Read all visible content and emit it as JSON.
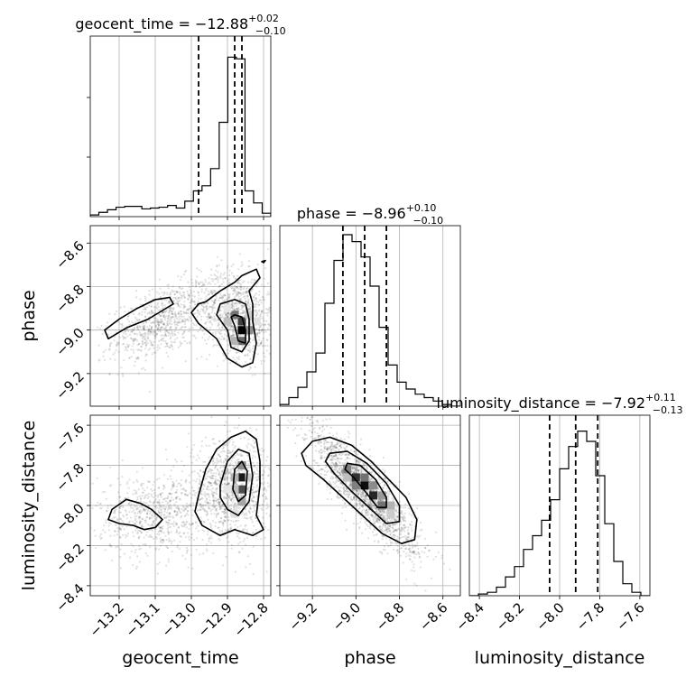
{
  "chart_data": {
    "type": "corner",
    "parameters": [
      "geocent_time",
      "phase",
      "luminosity_distance"
    ],
    "titles": [
      {
        "param": "geocent_time",
        "lhs": "geocent_time = ",
        "median": "−12.88",
        "plus": "+0.02",
        "minus": "−0.10"
      },
      {
        "param": "phase",
        "lhs": "phase = ",
        "median": "−8.96",
        "plus": "+0.10",
        "minus": "−0.10"
      },
      {
        "param": "luminosity_distance",
        "lhs": "luminosity_distance = ",
        "median": "−7.92",
        "plus": "+0.11",
        "minus": "−0.13"
      }
    ],
    "ranges": {
      "geocent_time": [
        -13.28,
        -12.78
      ],
      "phase": [
        -9.35,
        -8.52
      ],
      "luminosity_distance": [
        -8.45,
        -7.55
      ]
    },
    "ticks": {
      "geocent_time": [
        -13.2,
        -13.1,
        -13.0,
        -12.9,
        -12.8
      ],
      "phase": [
        -9.2,
        -9.0,
        -8.8,
        -8.6
      ],
      "luminosity_distance": [
        -8.4,
        -8.2,
        -8.0,
        -7.8,
        -7.6
      ]
    },
    "tick_labels": {
      "geocent_time": [
        "−13.2",
        "−13.1",
        "−13.0",
        "−12.9",
        "−12.8"
      ],
      "phase": [
        "−9.2",
        "−9.0",
        "−8.8",
        "−8.6"
      ],
      "luminosity_distance": [
        "−8.4",
        "−8.2",
        "−8.0",
        "−7.8",
        "−7.6"
      ]
    },
    "quantiles": {
      "geocent_time": [
        -12.98,
        -12.88,
        -12.86
      ],
      "phase": [
        -9.06,
        -8.96,
        -8.86
      ],
      "luminosity_distance": [
        -8.05,
        -7.92,
        -7.81
      ]
    },
    "histograms": {
      "geocent_time": [
        0.01,
        0.025,
        0.04,
        0.055,
        0.06,
        0.06,
        0.045,
        0.05,
        0.055,
        0.065,
        0.05,
        0.09,
        0.15,
        0.18,
        0.28,
        0.55,
        0.93,
        0.92,
        0.15,
        0.08,
        0.02
      ],
      "phase": [
        0.01,
        0.05,
        0.11,
        0.2,
        0.31,
        0.6,
        0.85,
        1.0,
        0.96,
        0.87,
        0.7,
        0.46,
        0.24,
        0.14,
        0.1,
        0.07,
        0.05,
        0.03,
        0.01,
        0.0
      ],
      "luminosity_distance": [
        0.0,
        0.01,
        0.02,
        0.05,
        0.11,
        0.17,
        0.27,
        0.35,
        0.44,
        0.56,
        0.74,
        0.87,
        0.96,
        0.9,
        0.7,
        0.42,
        0.2,
        0.07,
        0.02,
        0.0
      ]
    },
    "pair_clouds": [
      {
        "x": "geocent_time",
        "y": "phase",
        "components": [
          {
            "cx": -13.08,
            "cy": -8.96,
            "sx": 0.07,
            "sy": 0.09,
            "rho": 0.5,
            "weight": 0.45
          },
          {
            "cx": -12.87,
            "cy": -8.93,
            "sx": 0.05,
            "sy": 0.1,
            "rho": -0.2,
            "weight": 0.55
          }
        ]
      },
      {
        "x": "geocent_time",
        "y": "luminosity_distance",
        "components": [
          {
            "cx": -13.1,
            "cy": -8.05,
            "sx": 0.08,
            "sy": 0.1,
            "rho": 0.0,
            "weight": 0.4
          },
          {
            "cx": -12.89,
            "cy": -7.92,
            "sx": 0.06,
            "sy": 0.12,
            "rho": 0.0,
            "weight": 0.6
          }
        ]
      },
      {
        "x": "phase",
        "y": "luminosity_distance",
        "components": [
          {
            "cx": -8.96,
            "cy": -7.93,
            "sx": 0.12,
            "sy": 0.15,
            "rho": -0.85,
            "weight": 1.0
          }
        ]
      }
    ],
    "density_cells": [
      {
        "x": "geocent_time",
        "y": "phase",
        "cells": [
          [
            -12.86,
            -9.0,
            1.0
          ],
          [
            -12.86,
            -8.96,
            0.75
          ],
          [
            -12.88,
            -8.93,
            0.55
          ],
          [
            -12.86,
            -9.05,
            0.6
          ],
          [
            -12.84,
            -9.0,
            0.45
          ],
          [
            -12.9,
            -8.96,
            0.25
          ],
          [
            -12.88,
            -9.05,
            0.3
          ],
          [
            -12.84,
            -8.93,
            0.2
          ],
          [
            -12.9,
            -8.9,
            0.1
          ],
          [
            -12.82,
            -8.96,
            0.12
          ]
        ]
      },
      {
        "x": "geocent_time",
        "y": "luminosity_distance",
        "cells": [
          [
            -12.86,
            -7.86,
            0.9
          ],
          [
            -12.86,
            -7.92,
            0.7
          ],
          [
            -12.86,
            -7.8,
            0.45
          ],
          [
            -12.86,
            -7.98,
            0.35
          ],
          [
            -12.88,
            -7.86,
            0.3
          ],
          [
            -12.88,
            -7.92,
            0.25
          ],
          [
            -12.84,
            -7.86,
            0.2
          ],
          [
            -12.88,
            -8.04,
            0.12
          ],
          [
            -12.9,
            -7.92,
            0.1
          ]
        ]
      },
      {
        "x": "phase",
        "y": "luminosity_distance",
        "cells": [
          [
            -9.0,
            -7.86,
            0.8
          ],
          [
            -8.96,
            -7.9,
            0.95
          ],
          [
            -8.92,
            -7.95,
            0.85
          ],
          [
            -8.88,
            -8.0,
            0.55
          ],
          [
            -9.04,
            -7.82,
            0.5
          ],
          [
            -8.96,
            -7.86,
            0.55
          ],
          [
            -9.0,
            -7.9,
            0.5
          ],
          [
            -8.92,
            -7.9,
            0.45
          ],
          [
            -8.88,
            -7.95,
            0.4
          ],
          [
            -8.84,
            -8.0,
            0.3
          ],
          [
            -9.04,
            -7.86,
            0.25
          ],
          [
            -8.84,
            -8.04,
            0.2
          ]
        ]
      }
    ],
    "contours": [
      {
        "x": "geocent_time",
        "y": "phase",
        "paths": [
          [
            [
              -13.22,
              -9.03
            ],
            [
              -13.18,
              -8.99
            ],
            [
              -13.12,
              -8.95
            ],
            [
              -13.08,
              -8.91
            ],
            [
              -13.05,
              -8.88
            ],
            [
              -13.06,
              -8.85
            ],
            [
              -13.1,
              -8.86
            ],
            [
              -13.15,
              -8.9
            ],
            [
              -13.2,
              -8.95
            ],
            [
              -13.24,
              -9.0
            ],
            [
              -13.23,
              -9.04
            ],
            [
              -13.22,
              -9.03
            ]
          ],
          [
            [
              -12.96,
              -8.87
            ],
            [
              -12.92,
              -8.82
            ],
            [
              -12.88,
              -8.78
            ],
            [
              -12.86,
              -8.75
            ],
            [
              -12.82,
              -8.72
            ],
            [
              -12.81,
              -8.76
            ],
            [
              -12.84,
              -8.82
            ],
            [
              -12.83,
              -8.88
            ],
            [
              -12.83,
              -8.96
            ],
            [
              -12.82,
              -9.06
            ],
            [
              -12.83,
              -9.15
            ],
            [
              -12.86,
              -9.17
            ],
            [
              -12.9,
              -9.13
            ],
            [
              -12.93,
              -9.04
            ],
            [
              -12.98,
              -8.97
            ],
            [
              -13.0,
              -8.92
            ],
            [
              -12.98,
              -8.88
            ],
            [
              -12.96,
              -8.87
            ]
          ],
          [
            [
              -12.92,
              -8.88
            ],
            [
              -12.88,
              -8.86
            ],
            [
              -12.85,
              -8.88
            ],
            [
              -12.84,
              -8.95
            ],
            [
              -12.84,
              -9.05
            ],
            [
              -12.86,
              -9.1
            ],
            [
              -12.89,
              -9.08
            ],
            [
              -12.9,
              -9.0
            ],
            [
              -12.93,
              -8.93
            ],
            [
              -12.92,
              -8.88
            ]
          ],
          [
            [
              -12.88,
              -8.93
            ],
            [
              -12.86,
              -8.94
            ],
            [
              -12.85,
              -9.0
            ],
            [
              -12.85,
              -9.06
            ],
            [
              -12.87,
              -9.05
            ],
            [
              -12.88,
              -8.98
            ],
            [
              -12.89,
              -8.94
            ],
            [
              -12.88,
              -8.93
            ]
          ],
          [
            [
              -12.805,
              -8.685
            ],
            [
              -12.795,
              -8.68
            ],
            [
              -12.8,
              -8.69
            ],
            [
              -12.805,
              -8.685
            ]
          ]
        ]
      },
      {
        "x": "geocent_time",
        "y": "luminosity_distance",
        "paths": [
          [
            [
              -13.22,
              -8.02
            ],
            [
              -13.18,
              -7.97
            ],
            [
              -13.14,
              -7.99
            ],
            [
              -13.11,
              -8.02
            ],
            [
              -13.08,
              -8.07
            ],
            [
              -13.1,
              -8.11
            ],
            [
              -13.13,
              -8.12
            ],
            [
              -13.16,
              -8.1
            ],
            [
              -13.2,
              -8.09
            ],
            [
              -13.23,
              -8.07
            ],
            [
              -13.22,
              -8.02
            ]
          ],
          [
            [
              -12.98,
              -7.95
            ],
            [
              -12.96,
              -7.82
            ],
            [
              -12.93,
              -7.72
            ],
            [
              -12.89,
              -7.66
            ],
            [
              -12.85,
              -7.63
            ],
            [
              -12.82,
              -7.67
            ],
            [
              -12.81,
              -7.78
            ],
            [
              -12.81,
              -7.9
            ],
            [
              -12.82,
              -8.05
            ],
            [
              -12.8,
              -8.12
            ],
            [
              -12.83,
              -8.15
            ],
            [
              -12.88,
              -8.12
            ],
            [
              -12.92,
              -8.15
            ],
            [
              -12.97,
              -8.1
            ],
            [
              -12.99,
              -8.03
            ],
            [
              -12.98,
              -7.95
            ]
          ],
          [
            [
              -12.92,
              -7.9
            ],
            [
              -12.9,
              -7.78
            ],
            [
              -12.87,
              -7.72
            ],
            [
              -12.84,
              -7.74
            ],
            [
              -12.83,
              -7.85
            ],
            [
              -12.84,
              -7.98
            ],
            [
              -12.87,
              -8.05
            ],
            [
              -12.9,
              -8.02
            ],
            [
              -12.92,
              -7.96
            ],
            [
              -12.92,
              -7.9
            ]
          ],
          [
            [
              -12.88,
              -7.82
            ],
            [
              -12.86,
              -7.78
            ],
            [
              -12.845,
              -7.83
            ],
            [
              -12.85,
              -7.95
            ],
            [
              -12.87,
              -7.98
            ],
            [
              -12.885,
              -7.92
            ],
            [
              -12.88,
              -7.82
            ]
          ]
        ]
      },
      {
        "x": "phase",
        "y": "luminosity_distance",
        "paths": [
          [
            [
              -9.25,
              -7.74
            ],
            [
              -9.2,
              -7.68
            ],
            [
              -9.12,
              -7.66
            ],
            [
              -9.02,
              -7.7
            ],
            [
              -8.93,
              -7.78
            ],
            [
              -8.85,
              -7.87
            ],
            [
              -8.77,
              -7.96
            ],
            [
              -8.72,
              -8.07
            ],
            [
              -8.73,
              -8.17
            ],
            [
              -8.79,
              -8.19
            ],
            [
              -8.88,
              -8.14
            ],
            [
              -8.97,
              -8.05
            ],
            [
              -9.06,
              -7.96
            ],
            [
              -9.15,
              -7.87
            ],
            [
              -9.23,
              -7.8
            ],
            [
              -9.25,
              -7.74
            ]
          ],
          [
            [
              -9.12,
              -7.74
            ],
            [
              -9.04,
              -7.73
            ],
            [
              -8.95,
              -7.79
            ],
            [
              -8.86,
              -7.89
            ],
            [
              -8.8,
              -8.0
            ],
            [
              -8.8,
              -8.08
            ],
            [
              -8.86,
              -8.09
            ],
            [
              -8.93,
              -8.02
            ],
            [
              -9.02,
              -7.93
            ],
            [
              -9.1,
              -7.84
            ],
            [
              -9.14,
              -7.78
            ],
            [
              -9.12,
              -7.74
            ]
          ],
          [
            [
              -9.04,
              -7.79
            ],
            [
              -8.98,
              -7.8
            ],
            [
              -8.91,
              -7.87
            ],
            [
              -8.86,
              -7.96
            ],
            [
              -8.86,
              -8.01
            ],
            [
              -8.9,
              -8.01
            ],
            [
              -8.95,
              -7.94
            ],
            [
              -9.01,
              -7.86
            ],
            [
              -9.05,
              -7.82
            ],
            [
              -9.04,
              -7.79
            ]
          ]
        ]
      }
    ],
    "grid": true
  }
}
